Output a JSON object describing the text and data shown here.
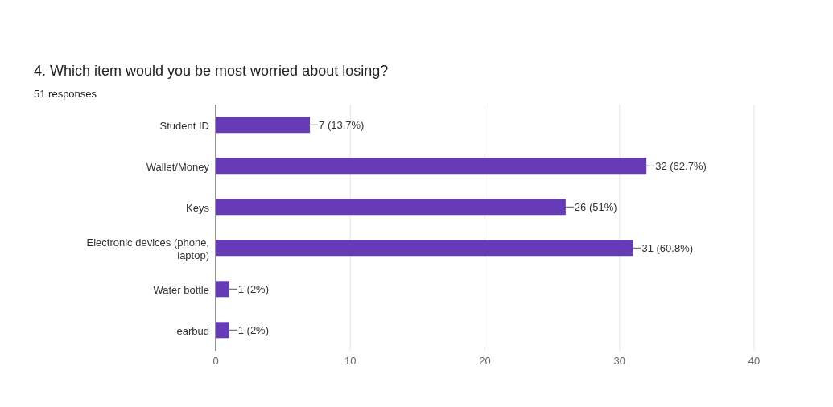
{
  "chart_data": {
    "type": "bar",
    "orientation": "horizontal",
    "title": "4. Which item would you be most worried about losing?",
    "subtitle": "51 responses",
    "categories": [
      "Student ID",
      "Wallet/Money",
      "Keys",
      "Electronic devices (phone, laptop)",
      "Water bottle",
      "earbud"
    ],
    "values": [
      7,
      32,
      26,
      31,
      1,
      1
    ],
    "value_labels": [
      "7 (13.7%)",
      "32 (62.7%)",
      "26 (51%)",
      "31 (60.8%)",
      "1 (2%)",
      "1 (2%)"
    ],
    "color": "#673ab7",
    "xlim": [
      0,
      40
    ],
    "xticks": [
      0,
      10,
      20,
      30,
      40
    ],
    "grid": "x",
    "legend": false
  }
}
